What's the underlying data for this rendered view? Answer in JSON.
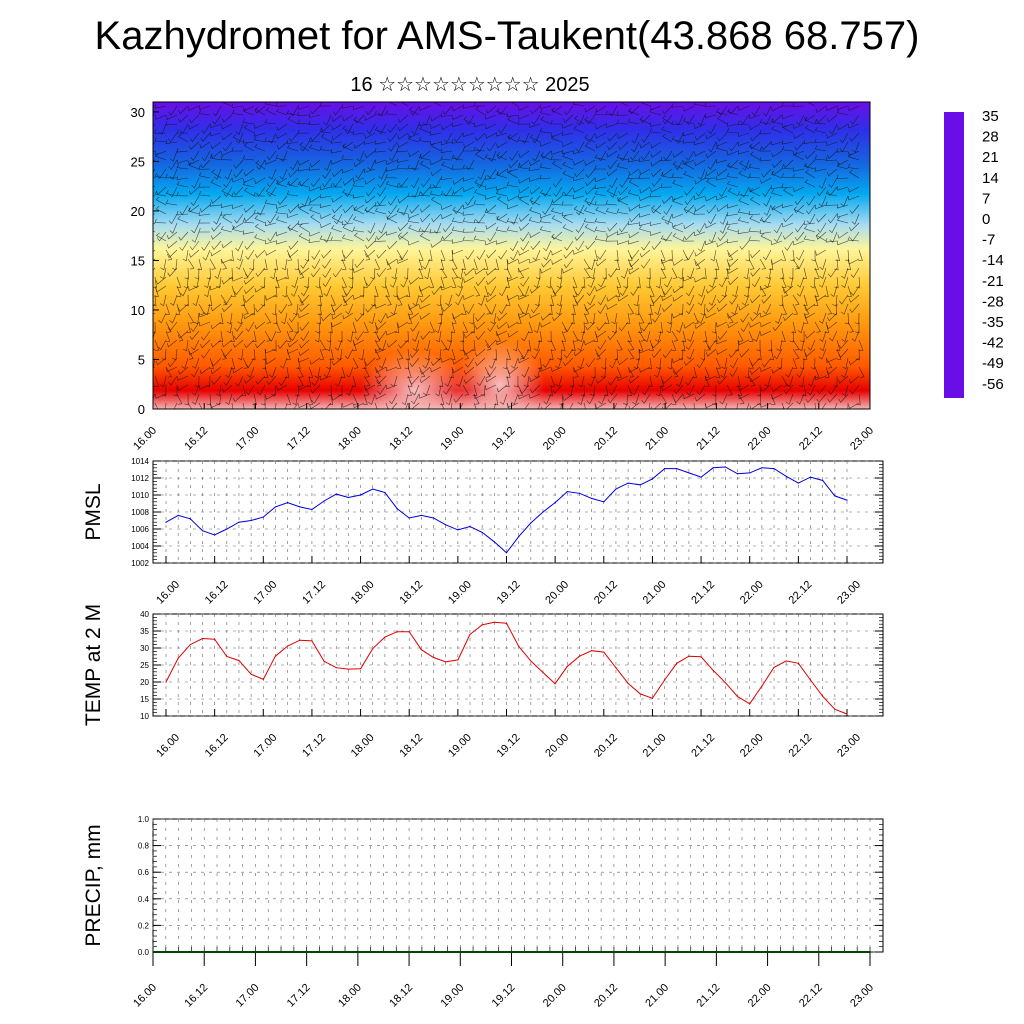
{
  "title": "Kazhydromet for AMS-Taukent(43.868 68.757)",
  "subtitle": "16 ☆☆☆☆☆☆☆☆☆ 2025",
  "colors": {
    "pressure_line": "#0000dd",
    "temperature_line": "#dd0000",
    "precip_line": "#004400"
  },
  "colorbar": {
    "labels": [
      "35",
      "28",
      "21",
      "14",
      "7",
      "0",
      "-7",
      "-14",
      "-21",
      "-28",
      "-35",
      "-42",
      "-49",
      "-56"
    ]
  },
  "time_labels": [
    "16.00",
    "16.12",
    "17.00",
    "17.12",
    "18.00",
    "18.12",
    "19.00",
    "19.12",
    "20.00",
    "20.12",
    "21.00",
    "21.12",
    "22.00",
    "22.12",
    "23.00"
  ],
  "chart_data": [
    {
      "type": "heatmap",
      "title": "",
      "ylabel": "",
      "y_ticks": [
        "0",
        "5",
        "10",
        "15",
        "20",
        "25",
        "30"
      ],
      "ylim": [
        0,
        31
      ],
      "x_categories": [
        "16.00",
        "16.12",
        "17.00",
        "17.12",
        "18.00",
        "18.12",
        "19.00",
        "19.12",
        "20.00",
        "20.12",
        "21.00",
        "21.12",
        "22.00",
        "22.12",
        "23.00"
      ],
      "color_scale": {
        "min": -56,
        "max": 35,
        "colors": [
          "#6a0ee8",
          "#2f2fe8",
          "#1565e0",
          "#05a8f0",
          "#a8dcf0",
          "#fff59a",
          "#ffc933",
          "#ff9a10",
          "#ff5a00",
          "#e80000",
          "#f5b5b5"
        ]
      },
      "wind_barbs": true
    },
    {
      "type": "line",
      "ylabel": "PMSL",
      "ylim": [
        1002,
        1014
      ],
      "y_ticks": [
        "1002",
        "1004",
        "1006",
        "1008",
        "1010",
        "1012",
        "1014"
      ],
      "x": [
        "16.00",
        "16.03",
        "16.06",
        "16.09",
        "16.12",
        "16.15",
        "16.18",
        "16.21",
        "17.00",
        "17.03",
        "17.06",
        "17.09",
        "17.12",
        "17.15",
        "17.18",
        "17.21",
        "18.00",
        "18.03",
        "18.06",
        "18.09",
        "18.12",
        "18.15",
        "18.18",
        "18.21",
        "19.00",
        "19.03",
        "19.06",
        "19.09",
        "19.12",
        "19.15",
        "19.18",
        "19.21",
        "20.00",
        "20.03",
        "20.06",
        "20.09",
        "20.12",
        "20.15",
        "20.18",
        "20.21",
        "21.00",
        "21.03",
        "21.06",
        "21.09",
        "21.12",
        "21.15",
        "21.18",
        "21.21",
        "22.00",
        "22.03",
        "22.06",
        "22.09",
        "22.12",
        "22.15",
        "22.18",
        "22.21",
        "23.00"
      ],
      "values": [
        1006.8,
        1007.6,
        1007.2,
        1005.8,
        1005.3,
        1006.0,
        1006.8,
        1007.0,
        1007.4,
        1008.6,
        1009.1,
        1008.6,
        1008.3,
        1009.3,
        1010.1,
        1009.7,
        1010.0,
        1010.7,
        1010.3,
        1008.4,
        1007.3,
        1007.6,
        1007.3,
        1006.5,
        1005.9,
        1006.3,
        1005.6,
        1004.5,
        1003.2,
        1005.1,
        1006.7,
        1008.0,
        1009.1,
        1010.4,
        1010.2,
        1009.6,
        1009.2,
        1010.7,
        1011.4,
        1011.2,
        1011.9,
        1013.1,
        1013.1,
        1012.6,
        1012.1,
        1013.2,
        1013.3,
        1012.5,
        1012.6,
        1013.2,
        1013.1,
        1012.2,
        1011.4,
        1012.1,
        1011.7,
        1009.9,
        1009.4
      ]
    },
    {
      "type": "line",
      "ylabel": "TEMP at 2 M",
      "ylim": [
        10,
        40
      ],
      "y_ticks": [
        "10",
        "15",
        "20",
        "25",
        "30",
        "35",
        "40"
      ],
      "x": [
        "16.00",
        "16.03",
        "16.06",
        "16.09",
        "16.12",
        "16.15",
        "16.18",
        "16.21",
        "17.00",
        "17.03",
        "17.06",
        "17.09",
        "17.12",
        "17.15",
        "17.18",
        "17.21",
        "18.00",
        "18.03",
        "18.06",
        "18.09",
        "18.12",
        "18.15",
        "18.18",
        "18.21",
        "19.00",
        "19.03",
        "19.06",
        "19.09",
        "19.12",
        "19.15",
        "19.18",
        "19.21",
        "20.00",
        "20.03",
        "20.06",
        "20.09",
        "20.12",
        "20.15",
        "20.18",
        "20.21",
        "21.00",
        "21.03",
        "21.06",
        "21.09",
        "21.12",
        "21.15",
        "21.18",
        "21.21",
        "22.00",
        "22.03",
        "22.06",
        "22.09",
        "22.12",
        "22.15",
        "22.18",
        "22.21",
        "23.00"
      ],
      "values": [
        20.0,
        27.0,
        31.0,
        32.8,
        32.6,
        27.5,
        26.3,
        22.3,
        20.8,
        27.6,
        30.6,
        32.3,
        32.1,
        26.1,
        24.2,
        23.8,
        23.9,
        29.8,
        33.2,
        34.8,
        34.8,
        29.5,
        27.2,
        25.9,
        26.5,
        34.0,
        36.8,
        37.6,
        37.3,
        30.5,
        26.2,
        22.8,
        19.5,
        24.6,
        27.6,
        29.2,
        28.8,
        24.2,
        19.6,
        16.5,
        15.2,
        20.6,
        25.5,
        27.6,
        27.4,
        23.4,
        19.8,
        15.7,
        13.6,
        18.8,
        24.3,
        26.2,
        25.5,
        20.6,
        15.8,
        12.0,
        10.6
      ]
    },
    {
      "type": "line",
      "ylabel": "PRECIP, mm",
      "ylim": [
        0,
        1
      ],
      "y_ticks": [
        "0.0",
        "0.2",
        "0.4",
        "0.6",
        "0.8",
        "1.0"
      ],
      "x": [
        "16.00",
        "23.00"
      ],
      "values": [
        0.0,
        0.0
      ]
    }
  ]
}
